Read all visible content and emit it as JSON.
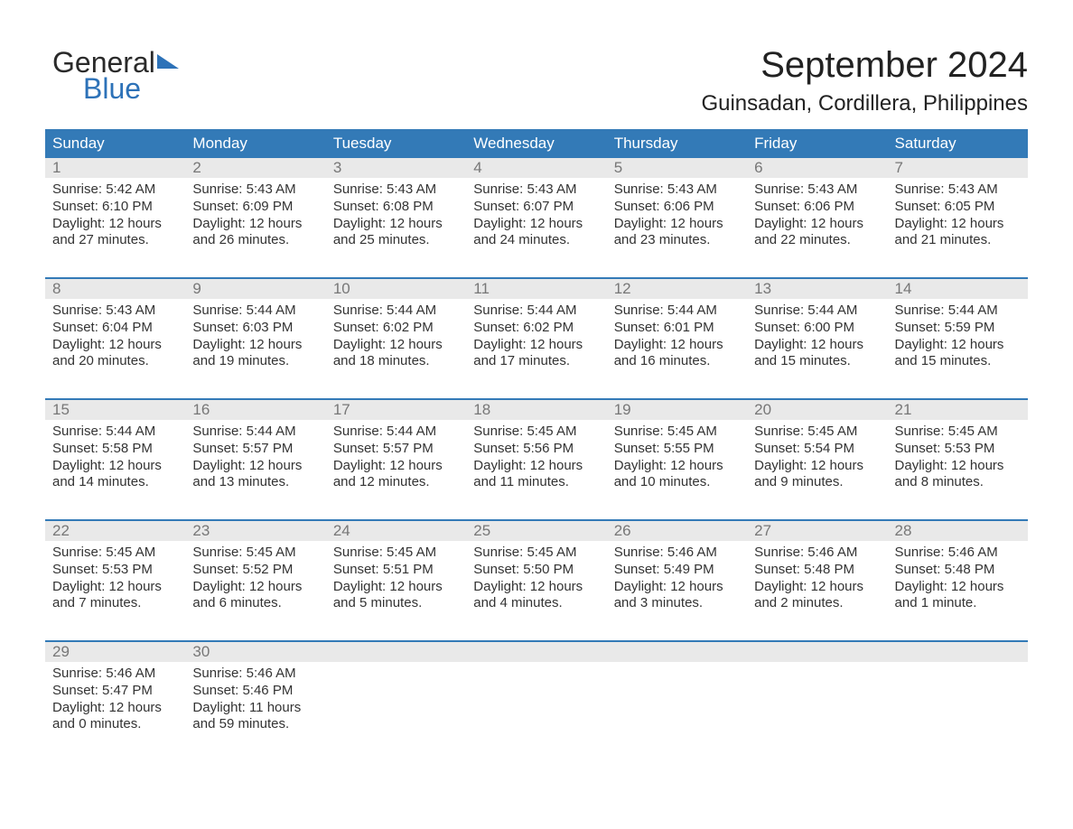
{
  "logo": {
    "top": "General",
    "bottom": "Blue"
  },
  "title": {
    "month": "September 2024",
    "location": "Guinsadan, Cordillera, Philippines"
  },
  "colors": {
    "header_blue": "#337ab7",
    "daynum_bg": "#e9e9e9",
    "daynum_color": "#777777",
    "body_text": "#333333",
    "background": "#ffffff",
    "logo_blue": "#2d72b8",
    "logo_dark": "#2a2a2a"
  },
  "typography": {
    "title_fontsize": 40,
    "subtitle_fontsize": 24,
    "dow_fontsize": 17,
    "daynum_fontsize": 17,
    "body_fontsize": 15,
    "family": "Arial"
  },
  "calendar": {
    "type": "calendar-table",
    "columns": 7,
    "dow": [
      "Sunday",
      "Monday",
      "Tuesday",
      "Wednesday",
      "Thursday",
      "Friday",
      "Saturday"
    ],
    "weeks": [
      [
        {
          "n": "1",
          "sunrise": "Sunrise: 5:42 AM",
          "sunset": "Sunset: 6:10 PM",
          "d1": "Daylight: 12 hours",
          "d2": "and 27 minutes."
        },
        {
          "n": "2",
          "sunrise": "Sunrise: 5:43 AM",
          "sunset": "Sunset: 6:09 PM",
          "d1": "Daylight: 12 hours",
          "d2": "and 26 minutes."
        },
        {
          "n": "3",
          "sunrise": "Sunrise: 5:43 AM",
          "sunset": "Sunset: 6:08 PM",
          "d1": "Daylight: 12 hours",
          "d2": "and 25 minutes."
        },
        {
          "n": "4",
          "sunrise": "Sunrise: 5:43 AM",
          "sunset": "Sunset: 6:07 PM",
          "d1": "Daylight: 12 hours",
          "d2": "and 24 minutes."
        },
        {
          "n": "5",
          "sunrise": "Sunrise: 5:43 AM",
          "sunset": "Sunset: 6:06 PM",
          "d1": "Daylight: 12 hours",
          "d2": "and 23 minutes."
        },
        {
          "n": "6",
          "sunrise": "Sunrise: 5:43 AM",
          "sunset": "Sunset: 6:06 PM",
          "d1": "Daylight: 12 hours",
          "d2": "and 22 minutes."
        },
        {
          "n": "7",
          "sunrise": "Sunrise: 5:43 AM",
          "sunset": "Sunset: 6:05 PM",
          "d1": "Daylight: 12 hours",
          "d2": "and 21 minutes."
        }
      ],
      [
        {
          "n": "8",
          "sunrise": "Sunrise: 5:43 AM",
          "sunset": "Sunset: 6:04 PM",
          "d1": "Daylight: 12 hours",
          "d2": "and 20 minutes."
        },
        {
          "n": "9",
          "sunrise": "Sunrise: 5:44 AM",
          "sunset": "Sunset: 6:03 PM",
          "d1": "Daylight: 12 hours",
          "d2": "and 19 minutes."
        },
        {
          "n": "10",
          "sunrise": "Sunrise: 5:44 AM",
          "sunset": "Sunset: 6:02 PM",
          "d1": "Daylight: 12 hours",
          "d2": "and 18 minutes."
        },
        {
          "n": "11",
          "sunrise": "Sunrise: 5:44 AM",
          "sunset": "Sunset: 6:02 PM",
          "d1": "Daylight: 12 hours",
          "d2": "and 17 minutes."
        },
        {
          "n": "12",
          "sunrise": "Sunrise: 5:44 AM",
          "sunset": "Sunset: 6:01 PM",
          "d1": "Daylight: 12 hours",
          "d2": "and 16 minutes."
        },
        {
          "n": "13",
          "sunrise": "Sunrise: 5:44 AM",
          "sunset": "Sunset: 6:00 PM",
          "d1": "Daylight: 12 hours",
          "d2": "and 15 minutes."
        },
        {
          "n": "14",
          "sunrise": "Sunrise: 5:44 AM",
          "sunset": "Sunset: 5:59 PM",
          "d1": "Daylight: 12 hours",
          "d2": "and 15 minutes."
        }
      ],
      [
        {
          "n": "15",
          "sunrise": "Sunrise: 5:44 AM",
          "sunset": "Sunset: 5:58 PM",
          "d1": "Daylight: 12 hours",
          "d2": "and 14 minutes."
        },
        {
          "n": "16",
          "sunrise": "Sunrise: 5:44 AM",
          "sunset": "Sunset: 5:57 PM",
          "d1": "Daylight: 12 hours",
          "d2": "and 13 minutes."
        },
        {
          "n": "17",
          "sunrise": "Sunrise: 5:44 AM",
          "sunset": "Sunset: 5:57 PM",
          "d1": "Daylight: 12 hours",
          "d2": "and 12 minutes."
        },
        {
          "n": "18",
          "sunrise": "Sunrise: 5:45 AM",
          "sunset": "Sunset: 5:56 PM",
          "d1": "Daylight: 12 hours",
          "d2": "and 11 minutes."
        },
        {
          "n": "19",
          "sunrise": "Sunrise: 5:45 AM",
          "sunset": "Sunset: 5:55 PM",
          "d1": "Daylight: 12 hours",
          "d2": "and 10 minutes."
        },
        {
          "n": "20",
          "sunrise": "Sunrise: 5:45 AM",
          "sunset": "Sunset: 5:54 PM",
          "d1": "Daylight: 12 hours",
          "d2": "and 9 minutes."
        },
        {
          "n": "21",
          "sunrise": "Sunrise: 5:45 AM",
          "sunset": "Sunset: 5:53 PM",
          "d1": "Daylight: 12 hours",
          "d2": "and 8 minutes."
        }
      ],
      [
        {
          "n": "22",
          "sunrise": "Sunrise: 5:45 AM",
          "sunset": "Sunset: 5:53 PM",
          "d1": "Daylight: 12 hours",
          "d2": "and 7 minutes."
        },
        {
          "n": "23",
          "sunrise": "Sunrise: 5:45 AM",
          "sunset": "Sunset: 5:52 PM",
          "d1": "Daylight: 12 hours",
          "d2": "and 6 minutes."
        },
        {
          "n": "24",
          "sunrise": "Sunrise: 5:45 AM",
          "sunset": "Sunset: 5:51 PM",
          "d1": "Daylight: 12 hours",
          "d2": "and 5 minutes."
        },
        {
          "n": "25",
          "sunrise": "Sunrise: 5:45 AM",
          "sunset": "Sunset: 5:50 PM",
          "d1": "Daylight: 12 hours",
          "d2": "and 4 minutes."
        },
        {
          "n": "26",
          "sunrise": "Sunrise: 5:46 AM",
          "sunset": "Sunset: 5:49 PM",
          "d1": "Daylight: 12 hours",
          "d2": "and 3 minutes."
        },
        {
          "n": "27",
          "sunrise": "Sunrise: 5:46 AM",
          "sunset": "Sunset: 5:48 PM",
          "d1": "Daylight: 12 hours",
          "d2": "and 2 minutes."
        },
        {
          "n": "28",
          "sunrise": "Sunrise: 5:46 AM",
          "sunset": "Sunset: 5:48 PM",
          "d1": "Daylight: 12 hours",
          "d2": "and 1 minute."
        }
      ],
      [
        {
          "n": "29",
          "sunrise": "Sunrise: 5:46 AM",
          "sunset": "Sunset: 5:47 PM",
          "d1": "Daylight: 12 hours",
          "d2": "and 0 minutes."
        },
        {
          "n": "30",
          "sunrise": "Sunrise: 5:46 AM",
          "sunset": "Sunset: 5:46 PM",
          "d1": "Daylight: 11 hours",
          "d2": "and 59 minutes."
        },
        {
          "n": "",
          "sunrise": "",
          "sunset": "",
          "d1": "",
          "d2": ""
        },
        {
          "n": "",
          "sunrise": "",
          "sunset": "",
          "d1": "",
          "d2": ""
        },
        {
          "n": "",
          "sunrise": "",
          "sunset": "",
          "d1": "",
          "d2": ""
        },
        {
          "n": "",
          "sunrise": "",
          "sunset": "",
          "d1": "",
          "d2": ""
        },
        {
          "n": "",
          "sunrise": "",
          "sunset": "",
          "d1": "",
          "d2": ""
        }
      ]
    ]
  }
}
